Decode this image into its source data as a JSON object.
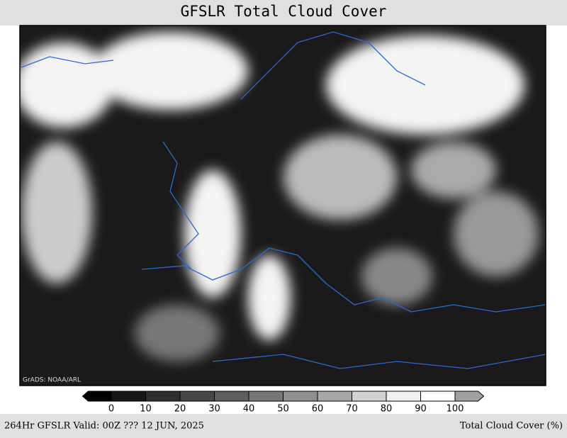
{
  "title": "GFSLR Total Cloud Cover",
  "map": {
    "credit": "GrADS: NOAA/ARL"
  },
  "colorbar": {
    "levels": [
      0,
      10,
      20,
      30,
      40,
      50,
      60,
      70,
      80,
      90,
      100
    ],
    "colors": [
      "#000000",
      "#161616",
      "#2e2e2e",
      "#464646",
      "#5e5e5e",
      "#777777",
      "#8f8f8f",
      "#a8a8a8",
      "#d2d2d2",
      "#efefef",
      "#ffffff",
      "#a0a0a0"
    ]
  },
  "footer": {
    "left": "264Hr GFSLR Valid: 00Z ??? 12 JUN, 2025",
    "right": "Total Cloud Cover (%)"
  }
}
